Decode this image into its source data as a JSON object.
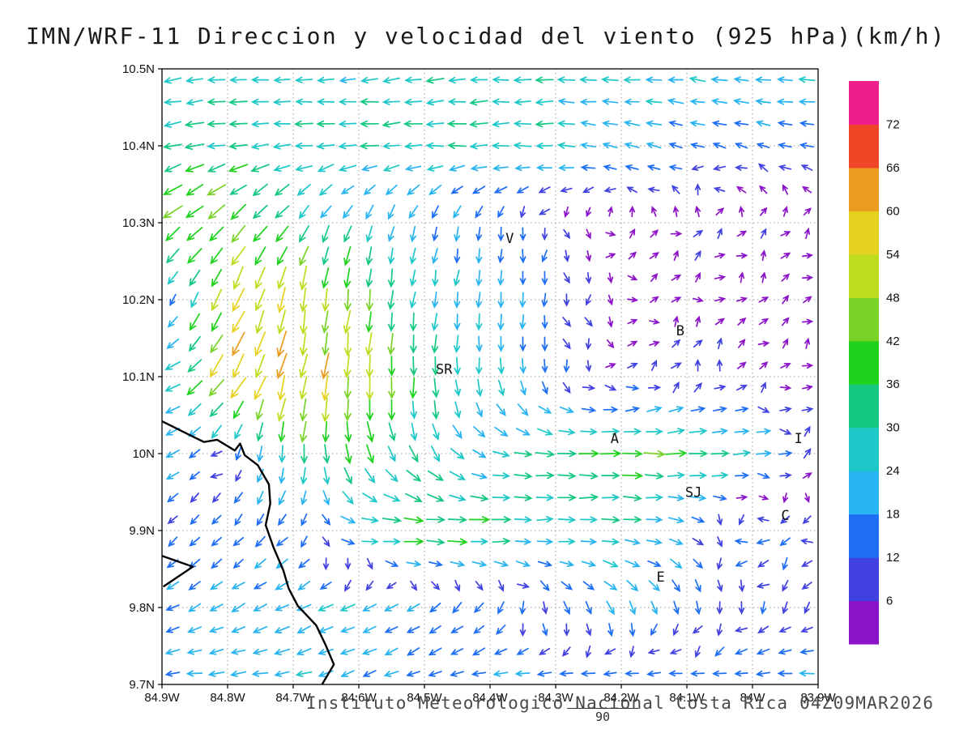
{
  "title": "IMN/WRF-11 Direccion y velocidad del viento (925 hPa)(km/h)",
  "footer": {
    "credit": "Instituto Meteorologico Nacional Costa Rica 04Z09MAR2026",
    "vector_scale_label": "90"
  },
  "chart_data": {
    "type": "vector_field",
    "title": "IMN/WRF-11 Direccion y velocidad del viento (925 hPa)(km/h)",
    "units": "km/h",
    "level": "925 hPa",
    "x_axis": {
      "ticks": [
        "84.9W",
        "84.8W",
        "84.7W",
        "84.6W",
        "84.5W",
        "84.4W",
        "84.3W",
        "84.2W",
        "84.1W",
        "84W",
        "83.9W"
      ],
      "values": [
        84.9,
        84.8,
        84.7,
        84.6,
        84.5,
        84.4,
        84.3,
        84.2,
        84.1,
        84.0,
        83.9
      ]
    },
    "y_axis": {
      "ticks": [
        "10.5N",
        "10.4N",
        "10.3N",
        "10.2N",
        "10.1N",
        "10N",
        "9.9N",
        "9.8N",
        "9.7N"
      ],
      "values": [
        10.5,
        10.4,
        10.3,
        10.2,
        10.1,
        10.0,
        9.9,
        9.8,
        9.7
      ]
    },
    "colorbar": {
      "levels": [
        6,
        12,
        18,
        24,
        30,
        36,
        42,
        48,
        54,
        60,
        66,
        72
      ],
      "colors_bottom_to_top": [
        "#8c14c8",
        "#4141e1",
        "#1e6ef5",
        "#28b4f0",
        "#1ec8c8",
        "#14c882",
        "#1ed21e",
        "#78d228",
        "#bedc1e",
        "#e6d21e",
        "#eb9b1e",
        "#f04628",
        "#f01e8c"
      ],
      "units": "km/h"
    },
    "stations": [
      {
        "label": "V",
        "lon": 84.37,
        "lat": 10.28
      },
      {
        "label": "SR",
        "lon": 84.47,
        "lat": 10.11
      },
      {
        "label": "B",
        "lon": 84.11,
        "lat": 10.16
      },
      {
        "label": "A",
        "lon": 84.21,
        "lat": 10.02
      },
      {
        "label": "SJ",
        "lon": 84.09,
        "lat": 9.95
      },
      {
        "label": "C",
        "lon": 83.95,
        "lat": 9.92
      },
      {
        "label": "E",
        "lon": 84.14,
        "lat": 9.84
      },
      {
        "label": "I",
        "lon": 83.93,
        "lat": 10.02
      }
    ],
    "coastlines": [
      [
        [
          84.9,
          10.042
        ],
        [
          84.86,
          10.025
        ],
        [
          84.836,
          10.015
        ],
        [
          84.816,
          10.018
        ],
        [
          84.789,
          10.004
        ],
        [
          84.781,
          10.013
        ],
        [
          84.774,
          9.998
        ],
        [
          84.754,
          9.985
        ],
        [
          84.737,
          9.96
        ],
        [
          84.735,
          9.935
        ],
        [
          84.742,
          9.907
        ],
        [
          84.73,
          9.878
        ],
        [
          84.715,
          9.848
        ],
        [
          84.707,
          9.825
        ],
        [
          84.693,
          9.802
        ],
        [
          84.665,
          9.777
        ],
        [
          84.651,
          9.752
        ],
        [
          84.638,
          9.726
        ],
        [
          84.656,
          9.7
        ]
      ],
      [
        [
          84.9,
          9.867
        ],
        [
          84.853,
          9.853
        ],
        [
          84.898,
          9.827
        ]
      ]
    ],
    "wind_grid": {
      "lons_w": [
        84.9,
        84.8,
        84.7,
        84.6,
        84.5,
        84.4,
        84.3,
        84.2,
        84.1,
        84.0,
        83.9
      ],
      "lats_n": [
        10.5,
        10.4,
        10.3,
        10.2,
        10.1,
        10.0,
        9.9,
        9.8,
        9.7
      ],
      "u_kmh": [
        [
          -26,
          -28,
          -27,
          -26,
          -26,
          -28,
          -26,
          -24,
          -23,
          -22,
          -24
        ],
        [
          -33,
          -34,
          -30,
          -30,
          -30,
          -32,
          -28,
          -20,
          -16,
          -14,
          -16
        ],
        [
          -34,
          -30,
          -18,
          -8,
          -5,
          -2,
          2,
          4,
          5,
          4,
          4
        ],
        [
          -5,
          -20,
          -12,
          -6,
          -4,
          -2,
          0,
          3,
          4,
          4,
          3
        ],
        [
          -22,
          -35,
          -10,
          -4,
          -2,
          2,
          2,
          6,
          4,
          4,
          3
        ],
        [
          -18,
          -6,
          -4,
          8,
          14,
          22,
          34,
          38,
          36,
          24,
          6
        ],
        [
          -8,
          -8,
          -12,
          30,
          42,
          36,
          26,
          30,
          18,
          -16,
          -6
        ],
        [
          -16,
          -18,
          -20,
          -20,
          -14,
          -8,
          4,
          10,
          6,
          -6,
          -10
        ],
        [
          -20,
          -22,
          -22,
          -18,
          -16,
          -18,
          -20,
          -18,
          -16,
          -18,
          -20
        ]
      ],
      "v_kmh": [
        [
          -3,
          -2,
          -2,
          -2,
          -4,
          -2,
          -1,
          0,
          2,
          2,
          2
        ],
        [
          -6,
          -4,
          -2,
          -2,
          -2,
          0,
          2,
          4,
          4,
          4,
          3
        ],
        [
          -28,
          -30,
          -26,
          -24,
          -18,
          -16,
          -8,
          4,
          5,
          4,
          3
        ],
        [
          -5,
          -48,
          -54,
          -44,
          -26,
          -22,
          -14,
          -3,
          2,
          3,
          3
        ],
        [
          -4,
          -50,
          -58,
          -50,
          -36,
          -26,
          -14,
          4,
          8,
          4,
          3
        ],
        [
          -10,
          -8,
          -36,
          -32,
          -26,
          -8,
          -2,
          0,
          2,
          2,
          2
        ],
        [
          -8,
          -10,
          -12,
          -2,
          0,
          2,
          2,
          0,
          -6,
          -4,
          -4
        ],
        [
          -8,
          -10,
          -10,
          -8,
          -10,
          -12,
          -14,
          -18,
          -16,
          -10,
          -6
        ],
        [
          0,
          -2,
          -4,
          -8,
          -6,
          -2,
          0,
          2,
          2,
          0,
          0
        ]
      ]
    },
    "arrow_grid": {
      "nx": 30,
      "ny": 28
    },
    "reference_vector": {
      "label": "90"
    }
  }
}
